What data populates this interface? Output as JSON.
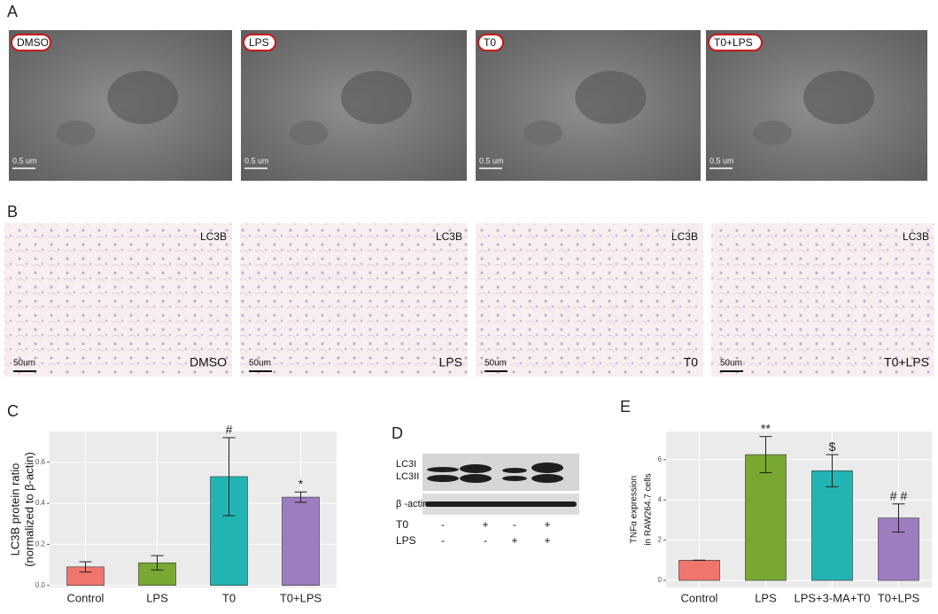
{
  "panel_a": {
    "label": "A",
    "images": [
      {
        "label": "DMSO",
        "scale": "0.5 um"
      },
      {
        "label": "LPS",
        "scale": "0.5 um"
      },
      {
        "label": "T0",
        "scale": "0.5 um"
      },
      {
        "label": "T0+LPS",
        "scale": "0.5 um"
      }
    ]
  },
  "panel_b": {
    "label": "B",
    "images": [
      {
        "stain": "LC3B",
        "label": "DMSO",
        "scale": "50um"
      },
      {
        "stain": "LC3B",
        "label": "LPS",
        "scale": "50um"
      },
      {
        "stain": "LC3B",
        "label": "T0",
        "scale": "50um"
      },
      {
        "stain": "LC3B",
        "label": "T0+LPS",
        "scale": "50um"
      }
    ]
  },
  "panel_d": {
    "label": "D",
    "bands": [
      "LC3I",
      "LC3II"
    ],
    "loading": "β -actin",
    "rows": [
      {
        "name": "T0",
        "signs": [
          "-",
          "+",
          "-",
          "+"
        ]
      },
      {
        "name": "LPS",
        "signs": [
          "-",
          "-",
          "+",
          "+"
        ]
      }
    ]
  },
  "chart_data": [
    {
      "type": "bar",
      "panel": "C",
      "ylabel": [
        "LC3B protein ratio",
        "(normalized to β-actin)"
      ],
      "categories": [
        "Control",
        "LPS",
        "T0",
        "T0+LPS"
      ],
      "values": [
        0.09,
        0.11,
        0.53,
        0.43
      ],
      "errors": [
        0.025,
        0.035,
        0.19,
        0.025
      ],
      "colors": [
        "#f0756d",
        "#78a832",
        "#22b4b3",
        "#9d7dbf"
      ],
      "annotations": [
        null,
        null,
        "#",
        "*"
      ],
      "ylim": [
        -0.01,
        0.75
      ],
      "yticks": [
        {
          "value": 0,
          "label": "0.0"
        },
        {
          "value": 0.2,
          "label": "0.2"
        },
        {
          "value": 0.4,
          "label": "0.4"
        },
        {
          "value": 0.6,
          "label": "0.6"
        }
      ],
      "grid": true
    },
    {
      "type": "bar",
      "panel": "E",
      "ylabel": [
        "TNFα expression",
        "in RAW264.7 cells"
      ],
      "categories": [
        "Control",
        "LPS",
        "LPS+3-MA+T0",
        "T0+LPS"
      ],
      "values": [
        1.0,
        6.25,
        5.45,
        3.1
      ],
      "errors": [
        0,
        0.9,
        0.8,
        0.7
      ],
      "colors": [
        "#f0756d",
        "#78a832",
        "#22b4b3",
        "#9d7dbf"
      ],
      "annotations": [
        null,
        "**",
        "$",
        "# #"
      ],
      "ylim": [
        -0.35,
        7.4
      ],
      "yticks": [
        0,
        2,
        4,
        6
      ],
      "grid": true
    }
  ]
}
